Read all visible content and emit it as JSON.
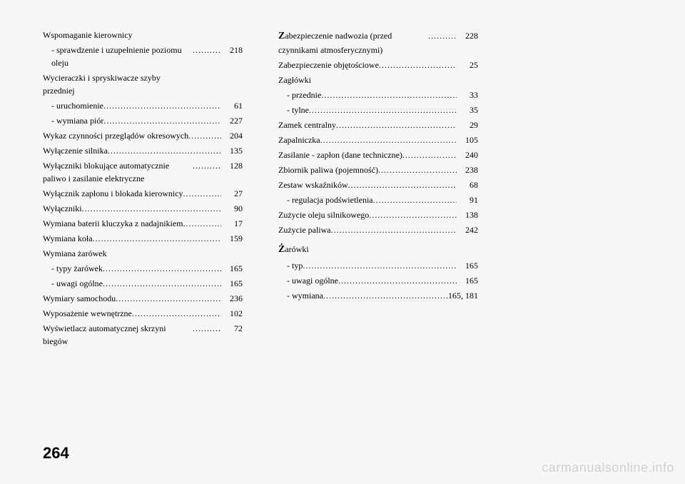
{
  "pageNumber": "264",
  "watermark": "carmanualsonline.info",
  "columns": [
    {
      "entries": [
        {
          "label": "Wspomaganie kierownicy",
          "page": "",
          "noPage": true
        },
        {
          "label": "- sprawdzenie i uzupełnienie poziomu oleju",
          "page": "218",
          "indent": true,
          "multiline": true
        },
        {
          "label": "Wycieraczki i spryskiwacze szyby przedniej",
          "page": "",
          "noPage": true,
          "multiline": true
        },
        {
          "label": "- uruchomienie",
          "page": "61",
          "indent": true
        },
        {
          "label": "- wymiana piór",
          "page": "227",
          "indent": true
        },
        {
          "label": "Wykaz czynności przeglądów okresowych",
          "page": "204",
          "multiline": true
        },
        {
          "label": "Wyłączenie silnika",
          "page": "135"
        },
        {
          "label": "Wyłączniki blokujące automatycznie paliwo i zasilanie elektryczne",
          "page": "128",
          "multiline": true
        },
        {
          "label": "Wyłącznik zapłonu i blokada kierownicy",
          "page": "27",
          "multiline": true
        },
        {
          "label": "Wyłączniki",
          "page": "90"
        },
        {
          "label": "Wymiana baterii kluczyka z nadajnikiem",
          "page": "17",
          "multiline": true
        },
        {
          "label": "Wymiana koła",
          "page": "159"
        },
        {
          "label": "Wymiana żarówek",
          "page": "",
          "noPage": true
        },
        {
          "label": "- typy żarówek",
          "page": "165",
          "indent": true
        },
        {
          "label": "- uwagi ogólne",
          "page": "165",
          "indent": true
        },
        {
          "label": "Wymiary samochodu",
          "page": "236"
        },
        {
          "label": "Wyposażenie wewnętrzne",
          "page": "102"
        },
        {
          "label": "Wyświetlacz automatycznej skrzyni biegów",
          "page": "72",
          "multiline": true
        }
      ]
    },
    {
      "entries": [
        {
          "label": "abezpieczenie nadwozia (przed czynnikami atmosferycznymi)",
          "page": "228",
          "letter": "Z",
          "multiline": true
        },
        {
          "label": "Zabezpieczenie objętościowe",
          "page": "25"
        },
        {
          "label": "Zagłówki",
          "page": "",
          "noPage": true
        },
        {
          "label": "- przednie",
          "page": "33",
          "indent": true
        },
        {
          "label": "- tylne",
          "page": "35",
          "indent": true
        },
        {
          "label": "Zamek centralny",
          "page": "29"
        },
        {
          "label": "Zapalniczka",
          "page": "105"
        },
        {
          "label": "Zasilanie - zapłon (dane techniczne)",
          "page": "240",
          "multiline": true
        },
        {
          "label": "Zbiornik paliwa (pojemność)",
          "page": "238"
        },
        {
          "label": "Zestaw wskaźników",
          "page": "68"
        },
        {
          "label": "- regulacja podświetlenia",
          "page": "91",
          "indent": true
        },
        {
          "label": "Zużycie oleju silnikowego",
          "page": "138"
        },
        {
          "label": "Zużycie paliwa",
          "page": "242"
        },
        {
          "label": "arówki",
          "page": "",
          "noPage": true,
          "letter": "Ż",
          "spaceBefore": true
        },
        {
          "label": "- typ",
          "page": "165",
          "indent": true
        },
        {
          "label": "- uwagi ogólne",
          "page": "165",
          "indent": true
        },
        {
          "label": "- wymiana",
          "page": "165, 181",
          "indent": true
        }
      ]
    }
  ]
}
